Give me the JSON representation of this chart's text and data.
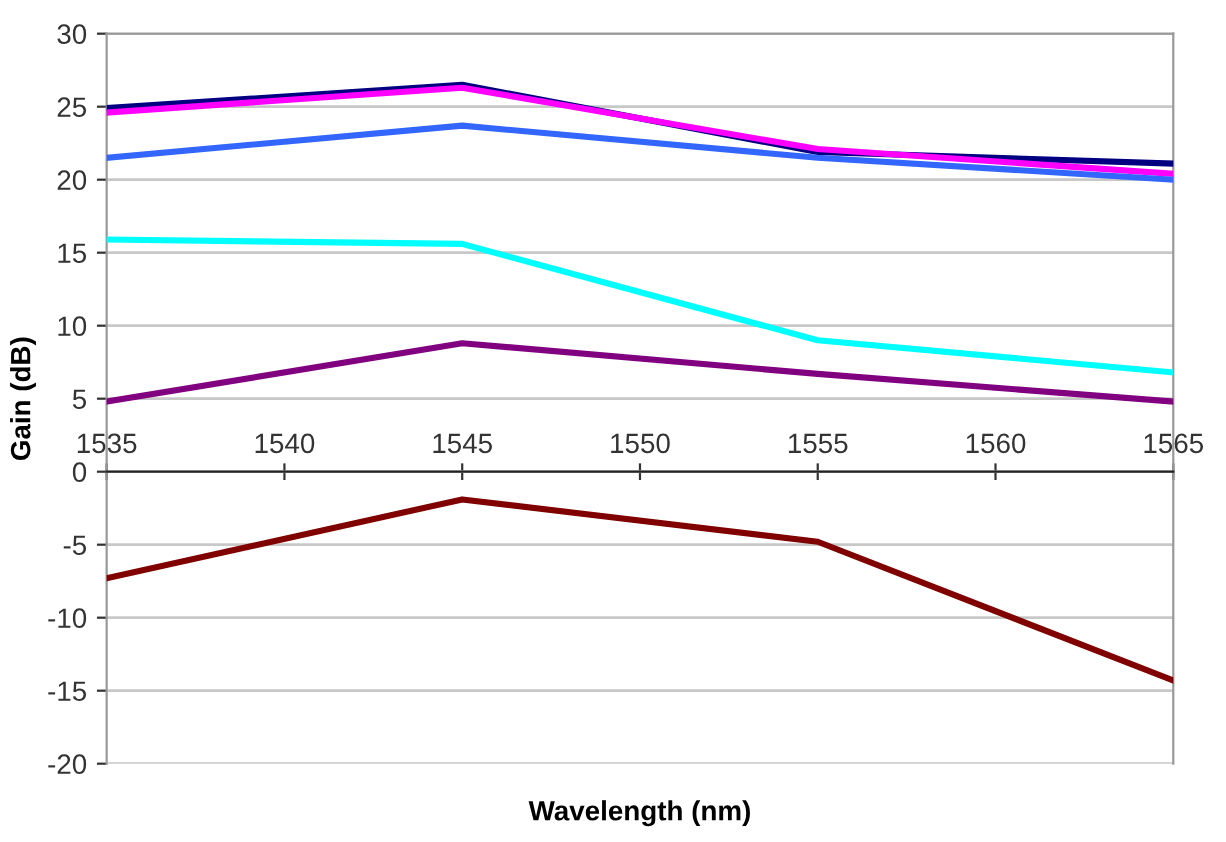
{
  "chart_data": {
    "type": "line",
    "xlabel": "Wavelength (nm)",
    "ylabel": "Gain (dB)",
    "x": [
      1535,
      1545,
      1555,
      1565
    ],
    "series": [
      {
        "color": "#000080",
        "values": [
          24.9,
          26.5,
          21.9,
          21.1
        ]
      },
      {
        "color": "#ff00ff",
        "values": [
          24.6,
          26.3,
          22.1,
          20.4
        ]
      },
      {
        "color": "#3366ff",
        "values": [
          21.5,
          23.7,
          21.5,
          20.0
        ]
      },
      {
        "color": "#00ffff",
        "values": [
          15.9,
          15.6,
          9.0,
          6.8
        ]
      },
      {
        "color": "#800080",
        "values": [
          4.8,
          8.8,
          6.7,
          4.8
        ]
      },
      {
        "color": "#800000",
        "values": [
          -7.3,
          -1.9,
          -4.8,
          -14.3
        ]
      }
    ],
    "xlim": [
      1535,
      1565
    ],
    "xticks": [
      1535,
      1540,
      1545,
      1550,
      1555,
      1560,
      1565
    ],
    "ylim": [
      -20,
      30
    ],
    "yticks": [
      -20,
      -15,
      -10,
      -5,
      0,
      5,
      10,
      15,
      20,
      25,
      30
    ],
    "grid": "y",
    "marker": "none",
    "line_style": "solid",
    "legend": false
  }
}
